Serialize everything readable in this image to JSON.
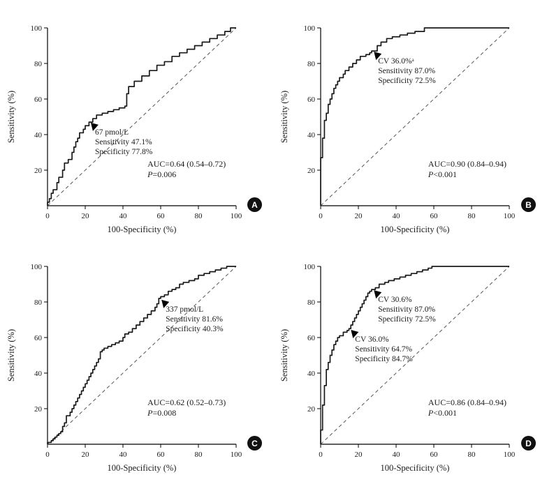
{
  "styles": {
    "background": "#ffffff",
    "curve_color": "#1a1a1a",
    "reference_color": "#555555",
    "text_color": "#1a1a1a",
    "badge_bg": "#111111",
    "badge_fg": "#ffffff"
  },
  "chart_data": [
    {
      "type": "line",
      "panel_label": "A",
      "title": "",
      "xlabel": "100-Specificity (%)",
      "ylabel": "Sensitivity (%)",
      "xlim": [
        0,
        100
      ],
      "ylim": [
        0,
        100
      ],
      "x_ticks": [
        0,
        20,
        40,
        60,
        80,
        100
      ],
      "y_ticks": [
        20,
        40,
        60,
        80,
        100
      ],
      "grid": false,
      "reference_line": {
        "from": [
          0,
          0
        ],
        "to": [
          100,
          100
        ],
        "style": "dashed"
      },
      "roc_points": [
        [
          0,
          0
        ],
        [
          0,
          2
        ],
        [
          1,
          2
        ],
        [
          1,
          4
        ],
        [
          2,
          4
        ],
        [
          2,
          7
        ],
        [
          3,
          7
        ],
        [
          3,
          9
        ],
        [
          5,
          9
        ],
        [
          5,
          13
        ],
        [
          6,
          13
        ],
        [
          6,
          16
        ],
        [
          8,
          16
        ],
        [
          8,
          20
        ],
        [
          9,
          20
        ],
        [
          9,
          24
        ],
        [
          11,
          24
        ],
        [
          11,
          26
        ],
        [
          13,
          26
        ],
        [
          13,
          30
        ],
        [
          14,
          30
        ],
        [
          14,
          33
        ],
        [
          15,
          33
        ],
        [
          15,
          36
        ],
        [
          16,
          36
        ],
        [
          16,
          38
        ],
        [
          17,
          38
        ],
        [
          17,
          41
        ],
        [
          19,
          41
        ],
        [
          19,
          43
        ],
        [
          20,
          43
        ],
        [
          20,
          45
        ],
        [
          22,
          45
        ],
        [
          22,
          47
        ],
        [
          24,
          47
        ],
        [
          24,
          49
        ],
        [
          26,
          49
        ],
        [
          26,
          51
        ],
        [
          29,
          51
        ],
        [
          29,
          52
        ],
        [
          32,
          52
        ],
        [
          32,
          53
        ],
        [
          35,
          53
        ],
        [
          35,
          54
        ],
        [
          38,
          54
        ],
        [
          38,
          55
        ],
        [
          41,
          55
        ],
        [
          41,
          56
        ],
        [
          42,
          56
        ],
        [
          42,
          63
        ],
        [
          43,
          63
        ],
        [
          43,
          65
        ],
        [
          46,
          67
        ],
        [
          50,
          70
        ],
        [
          54,
          73
        ],
        [
          58,
          76
        ],
        [
          62,
          79
        ],
        [
          66,
          81
        ],
        [
          70,
          84
        ],
        [
          74,
          86
        ],
        [
          78,
          88
        ],
        [
          82,
          90
        ],
        [
          86,
          92
        ],
        [
          90,
          94
        ],
        [
          94,
          96
        ],
        [
          97,
          98
        ],
        [
          100,
          100
        ]
      ],
      "markers": [
        {
          "x": 22.2,
          "y": 47.1,
          "lines": [
            "67 pmol/L",
            "Sensitivity 47.1%",
            "Specificity 77.8%"
          ]
        }
      ],
      "auc_text": "AUC=0.64 (0.54–0.72)",
      "p_italic": "P",
      "p_rest": "=0.006",
      "auc_pos": [
        53,
        22
      ]
    },
    {
      "type": "line",
      "panel_label": "B",
      "title": "",
      "xlabel": "100-Specificity (%)",
      "ylabel": "Sensitivity (%)",
      "xlim": [
        0,
        100
      ],
      "ylim": [
        0,
        100
      ],
      "x_ticks": [
        0,
        20,
        40,
        60,
        80,
        100
      ],
      "y_ticks": [
        20,
        40,
        60,
        80,
        100
      ],
      "grid": false,
      "reference_line": {
        "from": [
          0,
          0
        ],
        "to": [
          100,
          100
        ],
        "style": "dashed"
      },
      "roc_points": [
        [
          0,
          0
        ],
        [
          0,
          27
        ],
        [
          1,
          27
        ],
        [
          1,
          38
        ],
        [
          2,
          38
        ],
        [
          2,
          48
        ],
        [
          3,
          48
        ],
        [
          3,
          52
        ],
        [
          4,
          52
        ],
        [
          4,
          57
        ],
        [
          5,
          57
        ],
        [
          5,
          60
        ],
        [
          6,
          60
        ],
        [
          6,
          63
        ],
        [
          7,
          63
        ],
        [
          7,
          66
        ],
        [
          8,
          66
        ],
        [
          8,
          68
        ],
        [
          9,
          68
        ],
        [
          9,
          70
        ],
        [
          10,
          70
        ],
        [
          10,
          72
        ],
        [
          12,
          72
        ],
        [
          12,
          74
        ],
        [
          13,
          74
        ],
        [
          13,
          76
        ],
        [
          15,
          76
        ],
        [
          15,
          78
        ],
        [
          17,
          78
        ],
        [
          17,
          80
        ],
        [
          19,
          80
        ],
        [
          19,
          82
        ],
        [
          21,
          82
        ],
        [
          21,
          84
        ],
        [
          24,
          84
        ],
        [
          24,
          85
        ],
        [
          26,
          85
        ],
        [
          26,
          86
        ],
        [
          27,
          86
        ],
        [
          27,
          87
        ],
        [
          30,
          87
        ],
        [
          30,
          90
        ],
        [
          32,
          90
        ],
        [
          32,
          92
        ],
        [
          35,
          92
        ],
        [
          35,
          94
        ],
        [
          38,
          94
        ],
        [
          38,
          95
        ],
        [
          42,
          95
        ],
        [
          42,
          96
        ],
        [
          46,
          96
        ],
        [
          46,
          97
        ],
        [
          50,
          97
        ],
        [
          50,
          98
        ],
        [
          55,
          98
        ],
        [
          55,
          100
        ],
        [
          57,
          100
        ],
        [
          100,
          100
        ]
      ],
      "markers": [
        {
          "x": 27.5,
          "y": 87.0,
          "lines": [
            "CV 36.0%ᵃ",
            "Sensitivity 87.0%",
            "Specificity 72.5%"
          ]
        }
      ],
      "auc_text": "AUC=0.90 (0.84–0.94)",
      "p_italic": "P",
      "p_rest": "<0.001",
      "auc_pos": [
        57,
        22
      ]
    },
    {
      "type": "line",
      "panel_label": "C",
      "title": "",
      "xlabel": "100-Specificity (%)",
      "ylabel": "Sensitivity (%)",
      "xlim": [
        0,
        100
      ],
      "ylim": [
        0,
        100
      ],
      "x_ticks": [
        0,
        20,
        40,
        60,
        80,
        100
      ],
      "y_ticks": [
        20,
        40,
        60,
        80,
        100
      ],
      "grid": false,
      "reference_line": {
        "from": [
          0,
          0
        ],
        "to": [
          100,
          100
        ],
        "style": "dashed"
      },
      "roc_points": [
        [
          0,
          0
        ],
        [
          2,
          1
        ],
        [
          3,
          2
        ],
        [
          4,
          3
        ],
        [
          5,
          4
        ],
        [
          6,
          5
        ],
        [
          7,
          6
        ],
        [
          8,
          7
        ],
        [
          8,
          10
        ],
        [
          9,
          10
        ],
        [
          9,
          12
        ],
        [
          10,
          12
        ],
        [
          10,
          14
        ],
        [
          12,
          16
        ],
        [
          13,
          18
        ],
        [
          14,
          20
        ],
        [
          15,
          22
        ],
        [
          16,
          24
        ],
        [
          17,
          26
        ],
        [
          18,
          28
        ],
        [
          19,
          30
        ],
        [
          20,
          32
        ],
        [
          21,
          34
        ],
        [
          22,
          36
        ],
        [
          23,
          38
        ],
        [
          24,
          40
        ],
        [
          25,
          42
        ],
        [
          26,
          44
        ],
        [
          27,
          46
        ],
        [
          28,
          48
        ],
        [
          28,
          50
        ],
        [
          29,
          52
        ],
        [
          30,
          53
        ],
        [
          32,
          54
        ],
        [
          34,
          55
        ],
        [
          36,
          56
        ],
        [
          38,
          57
        ],
        [
          40,
          58
        ],
        [
          41,
          60
        ],
        [
          43,
          62
        ],
        [
          45,
          63
        ],
        [
          47,
          65
        ],
        [
          49,
          67
        ],
        [
          51,
          69
        ],
        [
          53,
          71
        ],
        [
          55,
          73
        ],
        [
          57,
          75
        ],
        [
          58,
          77
        ],
        [
          59,
          79
        ],
        [
          60,
          82
        ],
        [
          62,
          83
        ],
        [
          64,
          84
        ],
        [
          66,
          86
        ],
        [
          68,
          87
        ],
        [
          70,
          88
        ],
        [
          72,
          90
        ],
        [
          75,
          91
        ],
        [
          78,
          92
        ],
        [
          80,
          93
        ],
        [
          83,
          95
        ],
        [
          86,
          96
        ],
        [
          89,
          97
        ],
        [
          92,
          98
        ],
        [
          95,
          99
        ],
        [
          100,
          100
        ]
      ],
      "markers": [
        {
          "x": 59.7,
          "y": 81.6,
          "lines": [
            "337 pmol/L",
            "Sensitivity 81.6%",
            "Specificity 40.3%"
          ]
        }
      ],
      "auc_text": "AUC=0.62 (0.52–0.73)",
      "p_italic": "P",
      "p_rest": "=0.008",
      "auc_pos": [
        53,
        22
      ]
    },
    {
      "type": "line",
      "panel_label": "D",
      "title": "",
      "xlabel": "100-Specificity (%)",
      "ylabel": "Sensitivity (%)",
      "xlim": [
        0,
        100
      ],
      "ylim": [
        0,
        100
      ],
      "x_ticks": [
        0,
        20,
        40,
        60,
        80,
        100
      ],
      "y_ticks": [
        20,
        40,
        60,
        80,
        100
      ],
      "grid": false,
      "reference_line": {
        "from": [
          0,
          0
        ],
        "to": [
          100,
          100
        ],
        "style": "dashed"
      },
      "roc_points": [
        [
          0,
          0
        ],
        [
          0,
          8
        ],
        [
          1,
          8
        ],
        [
          1,
          22
        ],
        [
          2,
          22
        ],
        [
          2,
          33
        ],
        [
          3,
          33
        ],
        [
          3,
          42
        ],
        [
          4,
          42
        ],
        [
          4,
          46
        ],
        [
          5,
          46
        ],
        [
          5,
          50
        ],
        [
          6,
          50
        ],
        [
          6,
          53
        ],
        [
          7,
          53
        ],
        [
          7,
          56
        ],
        [
          8,
          56
        ],
        [
          8,
          58
        ],
        [
          9,
          58
        ],
        [
          9,
          60
        ],
        [
          10,
          60
        ],
        [
          10,
          61
        ],
        [
          12,
          61
        ],
        [
          12,
          63
        ],
        [
          14,
          63
        ],
        [
          14,
          64
        ],
        [
          15,
          64
        ],
        [
          15,
          65
        ],
        [
          16,
          65
        ],
        [
          16,
          67
        ],
        [
          17,
          67
        ],
        [
          17,
          69
        ],
        [
          18,
          69
        ],
        [
          18,
          71
        ],
        [
          19,
          71
        ],
        [
          19,
          73
        ],
        [
          20,
          73
        ],
        [
          20,
          75
        ],
        [
          21,
          75
        ],
        [
          21,
          77
        ],
        [
          22,
          77
        ],
        [
          22,
          79
        ],
        [
          23,
          79
        ],
        [
          23,
          81
        ],
        [
          24,
          81
        ],
        [
          24,
          83
        ],
        [
          25,
          83
        ],
        [
          25,
          85
        ],
        [
          26,
          85
        ],
        [
          26,
          86
        ],
        [
          27,
          86
        ],
        [
          27,
          87
        ],
        [
          29,
          87
        ],
        [
          29,
          88
        ],
        [
          31,
          88
        ],
        [
          31,
          90
        ],
        [
          34,
          90
        ],
        [
          34,
          91
        ],
        [
          36,
          91
        ],
        [
          36,
          92
        ],
        [
          39,
          92
        ],
        [
          39,
          93
        ],
        [
          42,
          93
        ],
        [
          42,
          94
        ],
        [
          45,
          94
        ],
        [
          45,
          95
        ],
        [
          48,
          95
        ],
        [
          48,
          96
        ],
        [
          51,
          96
        ],
        [
          51,
          97
        ],
        [
          54,
          97
        ],
        [
          54,
          98
        ],
        [
          57,
          98
        ],
        [
          57,
          99
        ],
        [
          59,
          99
        ],
        [
          59,
          100
        ],
        [
          62,
          100
        ],
        [
          100,
          100
        ]
      ],
      "markers": [
        {
          "x": 27.5,
          "y": 87.0,
          "lines": [
            "CV 30.6%",
            "Sensitivity 87.0%",
            "Specificity 72.5%"
          ]
        },
        {
          "x": 15.3,
          "y": 64.7,
          "lines": [
            "CV 36.0%",
            "Sensitivity 64.7%",
            "Specificity 84.7%"
          ]
        }
      ],
      "auc_text": "AUC=0.86 (0.84–0.94)",
      "p_italic": "P",
      "p_rest": "<0.001",
      "auc_pos": [
        57,
        22
      ]
    }
  ]
}
